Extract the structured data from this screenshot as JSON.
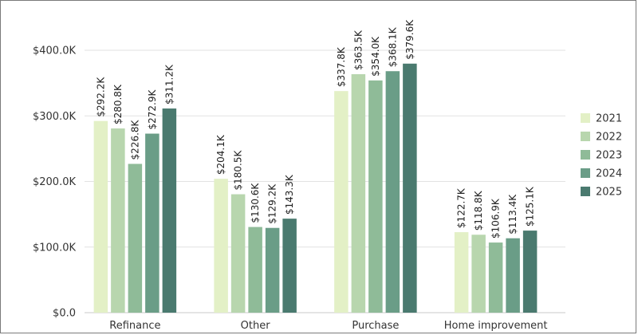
{
  "chart_data": {
    "type": "bar",
    "title": "",
    "xlabel": "",
    "ylabel": "",
    "categories": [
      "Refinance",
      "Other",
      "Purchase",
      "Home improvement"
    ],
    "series": [
      {
        "name": "2021",
        "values": [
          292.2,
          204.1,
          337.8,
          122.7
        ],
        "labels": [
          "$292.2K",
          "$204.1K",
          "$337.8K",
          "$122.7K"
        ]
      },
      {
        "name": "2022",
        "values": [
          280.8,
          180.5,
          363.5,
          118.8
        ],
        "labels": [
          "$280.8K",
          "$180.5K",
          "$363.5K",
          "$118.8K"
        ]
      },
      {
        "name": "2023",
        "values": [
          226.8,
          130.6,
          354.0,
          106.9
        ],
        "labels": [
          "$226.8K",
          "$130.6K",
          "$354.0K",
          "$106.9K"
        ]
      },
      {
        "name": "2024",
        "values": [
          272.9,
          129.2,
          368.1,
          113.4
        ],
        "labels": [
          "$272.9K",
          "$129.2K",
          "$368.1K",
          "$113.4K"
        ]
      },
      {
        "name": "2025",
        "values": [
          311.2,
          143.3,
          379.6,
          125.1
        ],
        "labels": [
          "$311.2K",
          "$143.3K",
          "$379.6K",
          "$125.1K"
        ]
      }
    ],
    "y_unit": "thousand USD",
    "ylim": [
      0,
      400
    ],
    "yticks": [
      0,
      100,
      200,
      300,
      400
    ],
    "ytick_labels": [
      "$0.0",
      "$100.0K",
      "$200.0K",
      "$300.0K",
      "$400.0K"
    ],
    "grid": true,
    "legend_position": "right",
    "colors": [
      "#e3f0c6",
      "#b8d6ae",
      "#8fbb98",
      "#6a9d87",
      "#4a7a6f"
    ]
  }
}
